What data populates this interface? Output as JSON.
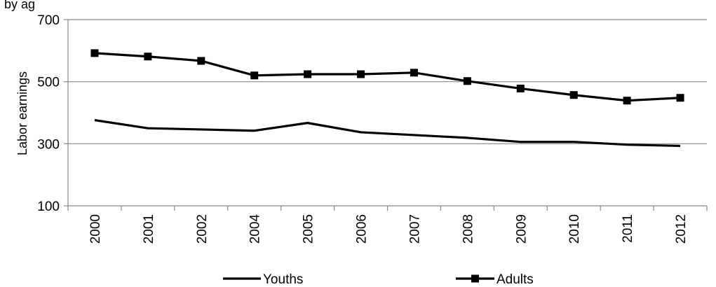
{
  "chart_data": {
    "type": "line",
    "title_fragment": ", by ag",
    "xlabel": "",
    "ylabel": "Labor earnings",
    "ylim": [
      100,
      700
    ],
    "yticks": [
      100,
      300,
      500,
      700
    ],
    "categories": [
      "2000",
      "2001",
      "2002",
      "2004",
      "2005",
      "2006",
      "2007",
      "2008",
      "2009",
      "2010",
      "2011",
      "2012"
    ],
    "grid": true,
    "legend_position": "bottom",
    "series": [
      {
        "name": "Youths",
        "marker": "none",
        "color": "#000000",
        "values": [
          376,
          350,
          346,
          342,
          367,
          337,
          328,
          319,
          306,
          306,
          297,
          293
        ]
      },
      {
        "name": "Adults",
        "marker": "square",
        "color": "#000000",
        "values": [
          592,
          581,
          567,
          520,
          524,
          524,
          529,
          502,
          478,
          457,
          439,
          448
        ]
      }
    ]
  }
}
